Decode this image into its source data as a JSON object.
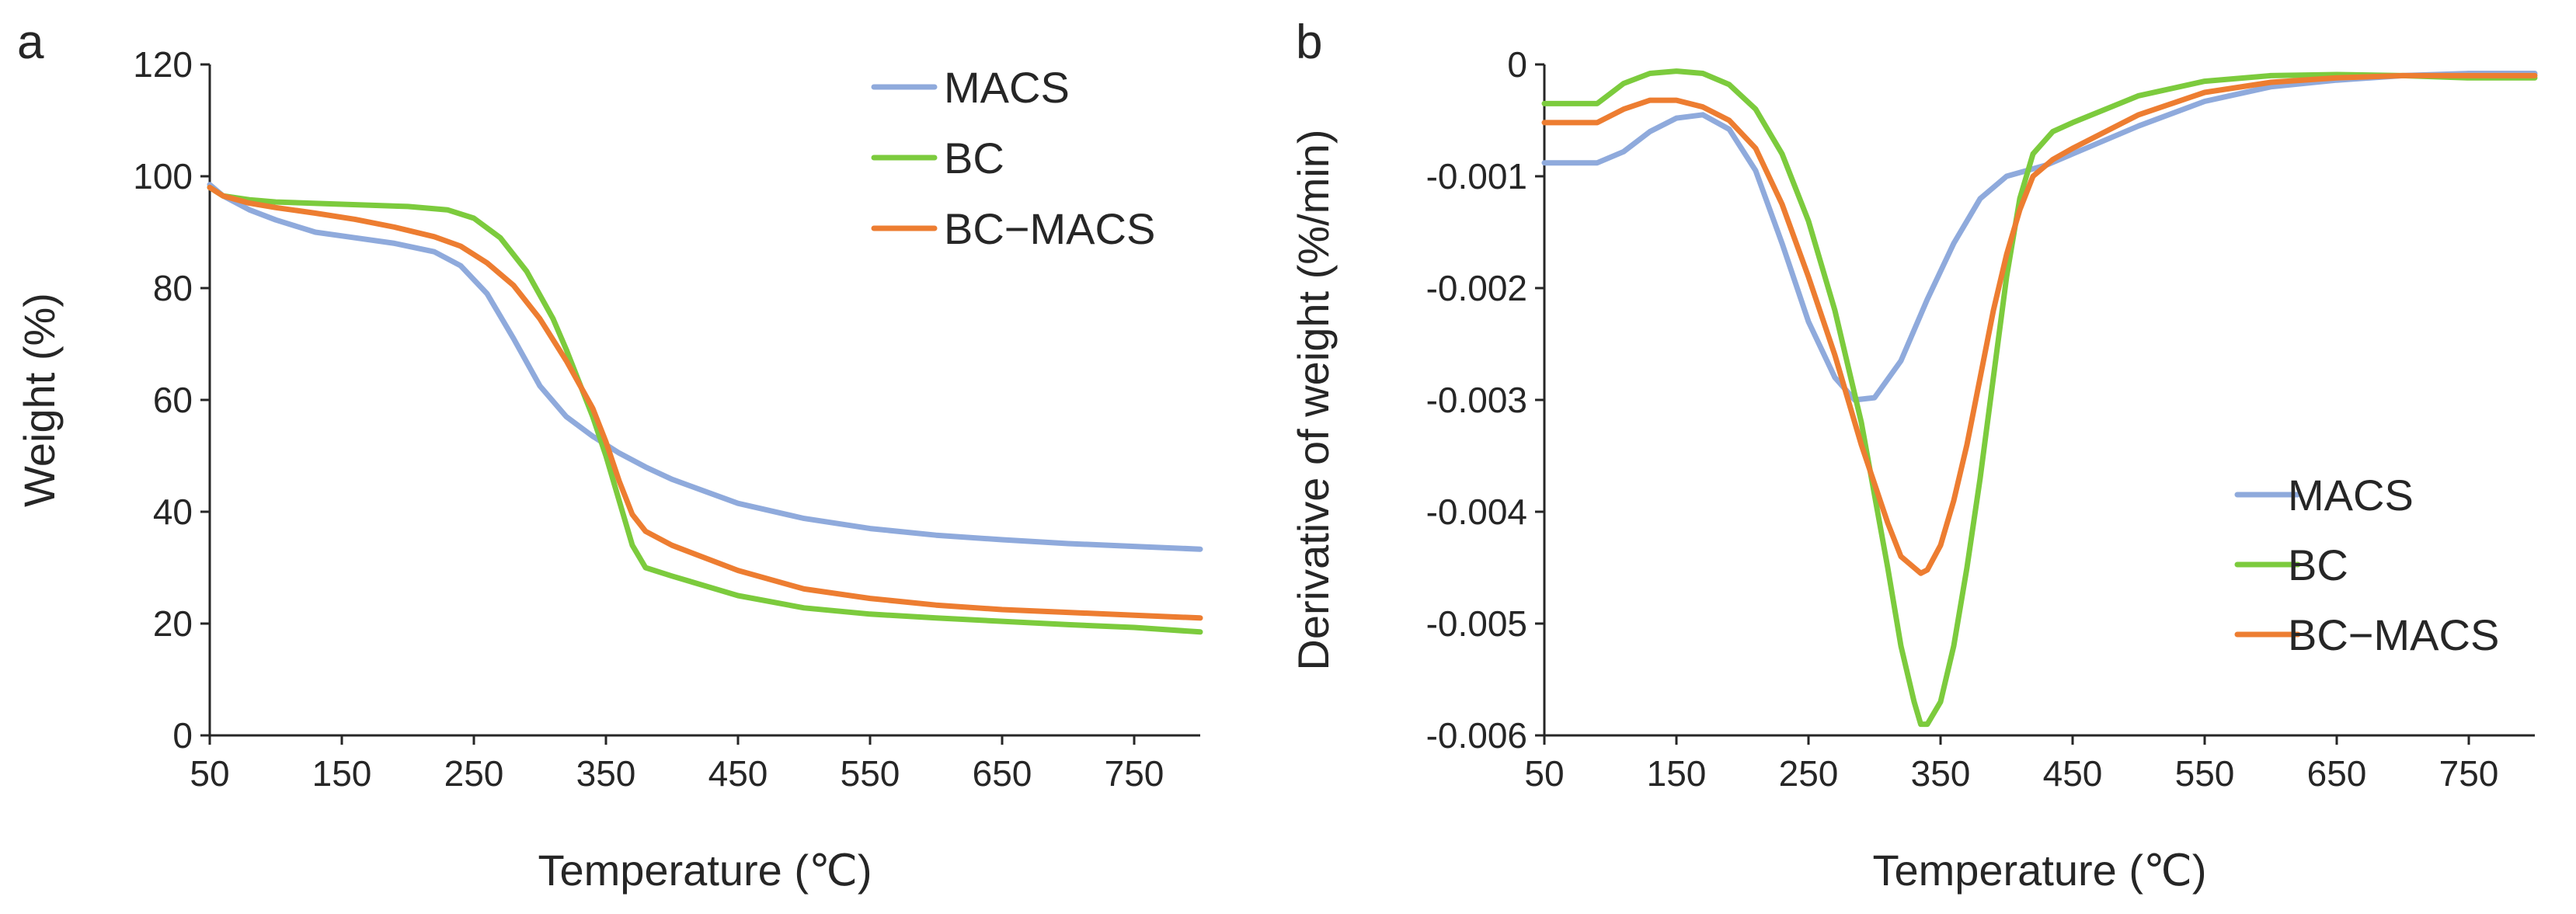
{
  "chart_data": [
    {
      "type": "line",
      "panel_label": "a",
      "title": "",
      "xlabel": "Temperature (℃)",
      "ylabel": "Weight (%)",
      "xlim": [
        50,
        800
      ],
      "ylim": [
        0,
        120
      ],
      "xticks": [
        50,
        150,
        250,
        350,
        450,
        550,
        650,
        750
      ],
      "yticks": [
        0,
        20,
        40,
        60,
        80,
        100,
        120
      ],
      "legend_position": "top-right",
      "series": [
        {
          "name": "MACS",
          "color": "#8FAADC",
          "x": [
            50,
            60,
            80,
            100,
            130,
            160,
            190,
            220,
            240,
            260,
            280,
            300,
            320,
            340,
            360,
            380,
            400,
            450,
            500,
            550,
            600,
            650,
            700,
            750,
            800
          ],
          "y": [
            98.5,
            96.5,
            94.0,
            92.2,
            90.0,
            89.0,
            88.0,
            86.5,
            84.0,
            79.0,
            71.0,
            62.5,
            57.0,
            53.5,
            50.5,
            48.0,
            45.8,
            41.5,
            38.8,
            37.0,
            35.8,
            35.0,
            34.3,
            33.8,
            33.3
          ]
        },
        {
          "name": "BC",
          "color": "#7CCB3D",
          "x": [
            50,
            60,
            80,
            100,
            150,
            200,
            230,
            250,
            270,
            290,
            310,
            320,
            330,
            340,
            350,
            360,
            370,
            380,
            400,
            450,
            500,
            550,
            600,
            650,
            700,
            750,
            800
          ],
          "y": [
            98.0,
            96.5,
            95.8,
            95.4,
            95.0,
            94.6,
            94.0,
            92.5,
            89.0,
            83.0,
            74.5,
            69.0,
            63.0,
            57.0,
            50.0,
            42.0,
            34.0,
            30.0,
            28.5,
            25.0,
            22.8,
            21.7,
            21.0,
            20.4,
            19.8,
            19.3,
            18.5
          ]
        },
        {
          "name": "BC−MACS",
          "color": "#ED7D31",
          "x": [
            50,
            60,
            80,
            100,
            130,
            160,
            190,
            220,
            240,
            260,
            280,
            300,
            320,
            340,
            350,
            360,
            370,
            380,
            400,
            450,
            500,
            550,
            600,
            650,
            700,
            750,
            800
          ],
          "y": [
            98.0,
            96.5,
            95.2,
            94.4,
            93.4,
            92.3,
            90.9,
            89.2,
            87.5,
            84.5,
            80.5,
            74.5,
            67.0,
            58.5,
            52.5,
            45.5,
            39.5,
            36.5,
            34.0,
            29.5,
            26.2,
            24.5,
            23.3,
            22.5,
            22.0,
            21.5,
            21.0
          ]
        }
      ]
    },
    {
      "type": "line",
      "panel_label": "b",
      "title": "",
      "xlabel": "Temperature (℃)",
      "ylabel": "Derivative of weight (%/min)",
      "xlim": [
        50,
        800
      ],
      "ylim": [
        -0.006,
        0
      ],
      "xticks": [
        50,
        150,
        250,
        350,
        450,
        550,
        650,
        750
      ],
      "yticks": [
        0,
        -0.001,
        -0.002,
        -0.003,
        -0.004,
        -0.005,
        -0.006
      ],
      "ytick_labels": [
        "0",
        "-0.001",
        "-0.002",
        "-0.003",
        "-0.004",
        "-0.005",
        "-0.006"
      ],
      "legend_position": "bottom-right",
      "series": [
        {
          "name": "MACS",
          "color": "#8FAADC",
          "x": [
            50,
            90,
            110,
            130,
            150,
            170,
            190,
            210,
            230,
            250,
            270,
            285,
            300,
            320,
            340,
            360,
            380,
            400,
            430,
            450,
            500,
            550,
            600,
            650,
            700,
            750,
            800
          ],
          "y": [
            -0.00088,
            -0.00088,
            -0.00078,
            -0.0006,
            -0.00048,
            -0.00045,
            -0.00058,
            -0.00095,
            -0.0016,
            -0.0023,
            -0.0028,
            -0.003,
            -0.00298,
            -0.00265,
            -0.0021,
            -0.0016,
            -0.0012,
            -0.001,
            -0.0009,
            -0.0008,
            -0.00055,
            -0.00033,
            -0.0002,
            -0.00014,
            -0.0001,
            -8e-05,
            -8e-05
          ]
        },
        {
          "name": "BC",
          "color": "#7CCB3D",
          "x": [
            50,
            90,
            110,
            130,
            150,
            170,
            190,
            210,
            230,
            250,
            270,
            290,
            310,
            320,
            330,
            335,
            340,
            350,
            360,
            370,
            380,
            390,
            400,
            410,
            420,
            435,
            450,
            500,
            550,
            600,
            650,
            700,
            750,
            800
          ],
          "y": [
            -0.00035,
            -0.00035,
            -0.00017,
            -8e-05,
            -6e-05,
            -8e-05,
            -0.00018,
            -0.0004,
            -0.0008,
            -0.0014,
            -0.0022,
            -0.0032,
            -0.0045,
            -0.0052,
            -0.0057,
            -0.0059,
            -0.0059,
            -0.0057,
            -0.0052,
            -0.0045,
            -0.0037,
            -0.0028,
            -0.0019,
            -0.0012,
            -0.0008,
            -0.0006,
            -0.00052,
            -0.00028,
            -0.00015,
            -0.0001,
            -9e-05,
            -0.0001,
            -0.00012,
            -0.00012
          ]
        },
        {
          "name": "BC−MACS",
          "color": "#ED7D31",
          "x": [
            50,
            90,
            110,
            130,
            150,
            170,
            190,
            210,
            230,
            250,
            270,
            290,
            310,
            320,
            330,
            335,
            340,
            350,
            360,
            370,
            380,
            390,
            400,
            410,
            420,
            435,
            450,
            500,
            550,
            600,
            650,
            700,
            750,
            800
          ],
          "y": [
            -0.00052,
            -0.00052,
            -0.0004,
            -0.00032,
            -0.00032,
            -0.00038,
            -0.0005,
            -0.00075,
            -0.00125,
            -0.0019,
            -0.0026,
            -0.0034,
            -0.0041,
            -0.0044,
            -0.0045,
            -0.00455,
            -0.00452,
            -0.0043,
            -0.0039,
            -0.0034,
            -0.0028,
            -0.0022,
            -0.0017,
            -0.0013,
            -0.001,
            -0.00085,
            -0.00075,
            -0.00045,
            -0.00025,
            -0.00016,
            -0.00012,
            -0.0001,
            -0.0001,
            -0.0001
          ]
        }
      ]
    }
  ]
}
